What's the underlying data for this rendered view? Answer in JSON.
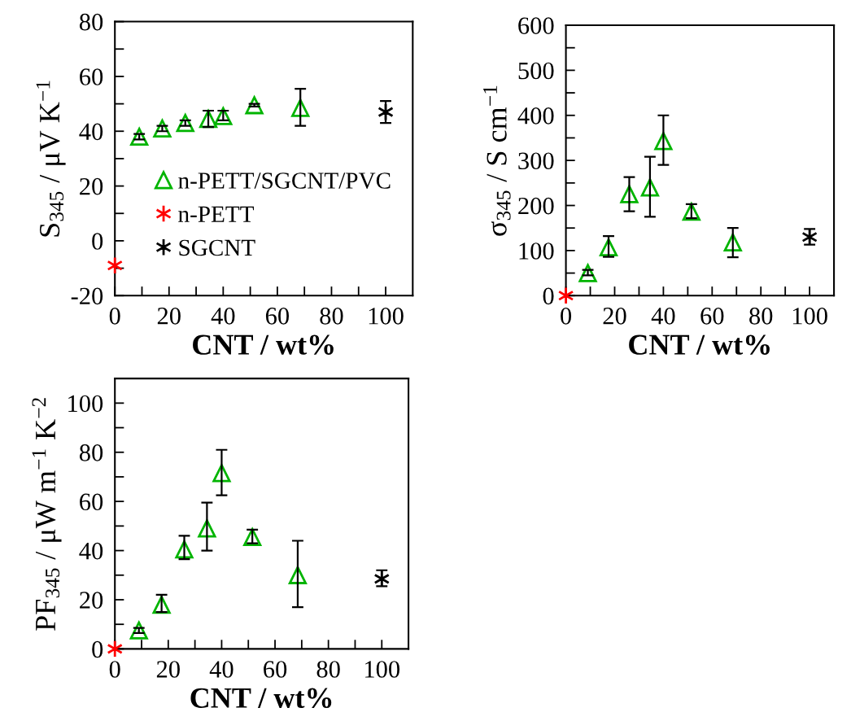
{
  "chart_data": [
    {
      "type": "scatter",
      "xlabel": "CNT / wt%",
      "ylabel": "S$_{345}$ / μV K$^{−1}$",
      "xlim": [
        0,
        110
      ],
      "ylim": [
        -20,
        80
      ],
      "xticks": [
        0,
        {
          "value": 10,
          "label": null
        },
        20,
        {
          "value": 30,
          "label": null
        },
        40,
        {
          "value": 50,
          "label": null
        },
        60,
        {
          "value": 70,
          "label": null
        },
        80,
        {
          "value": 90,
          "label": null
        },
        100
      ],
      "yticks": [
        -20,
        {
          "value": -10,
          "label": null
        },
        0,
        {
          "value": 10,
          "label": null
        },
        20,
        {
          "value": 30,
          "label": null
        },
        40,
        {
          "value": 50,
          "label": null
        },
        60,
        {
          "value": 70,
          "label": null
        },
        80
      ],
      "grid": false,
      "legend": "right",
      "series": [
        {
          "name": "n-PETT/SGCNT/PVC",
          "color": "#00b400",
          "marker": "triangle",
          "x": [
            9,
            17.5,
            26,
            34.5,
            40,
            51.5,
            68.5
          ],
          "values": [
            38,
            41,
            43,
            44.5,
            45.5,
            49.5,
            48.5
          ],
          "errors": [
            1,
            1,
            1,
            [
              41.5,
              47.5
            ],
            [
              44,
              47.5
            ],
            0.5,
            [
              42,
              55.5
            ]
          ]
        },
        {
          "name": "n-PETT",
          "color": "#ff0000",
          "marker": "cross",
          "x": [
            0
          ],
          "values": [
            -9
          ]
        },
        {
          "name": "SGCNT",
          "color": "#000000",
          "marker": "cross",
          "x": [
            100
          ],
          "values": [
            47
          ],
          "errors": [
            [
              43,
              51
            ]
          ]
        }
      ]
    },
    {
      "type": "scatter",
      "xlabel": "CNT / wt%",
      "ylabel": "σ$_{345}$ / S cm$^{−1}$",
      "xlim": [
        0,
        110
      ],
      "ylim": [
        0,
        600
      ],
      "xticks": [
        0,
        {
          "value": 10,
          "label": null
        },
        20,
        {
          "value": 30,
          "label": null
        },
        40,
        {
          "value": 50,
          "label": null
        },
        60,
        {
          "value": 70,
          "label": null
        },
        80,
        {
          "value": 90,
          "label": null
        },
        100
      ],
      "yticks": [
        0,
        {
          "value": 50,
          "label": null
        },
        100,
        {
          "value": 150,
          "label": null
        },
        200,
        {
          "value": 250,
          "label": null
        },
        300,
        {
          "value": 350,
          "label": null
        },
        400,
        {
          "value": 450,
          "label": null
        },
        500,
        {
          "value": 550,
          "label": null
        },
        600
      ],
      "grid": false,
      "series": [
        {
          "color": "#00b400",
          "marker": "triangle",
          "x": [
            9,
            17.5,
            26,
            34.5,
            40,
            51.5,
            68.5
          ],
          "values": [
            50,
            107,
            225,
            240,
            343,
            186,
            118
          ],
          "errors": [
            [
              45,
              57
            ],
            [
              86,
              132
            ],
            [
              187,
              263
            ],
            [
              175,
              308
            ],
            [
              290,
              400
            ],
            [
              172,
              203
            ],
            [
              85,
              150
            ]
          ]
        },
        {
          "color": "#ff0000",
          "marker": "cross",
          "x": [
            0
          ],
          "values": [
            0
          ]
        },
        {
          "color": "#000000",
          "marker": "cross",
          "x": [
            100
          ],
          "values": [
            130
          ],
          "errors": [
            [
              113,
              148
            ]
          ]
        }
      ]
    },
    {
      "type": "scatter",
      "xlabel": "CNT / wt%",
      "ylabel": "PF$_{345}$ / μW m$^{−1}$ K$^{−2}$",
      "xlim": [
        0,
        110
      ],
      "ylim": [
        0,
        110
      ],
      "xticks": [
        0,
        {
          "value": 10,
          "label": null
        },
        20,
        {
          "value": 30,
          "label": null
        },
        40,
        {
          "value": 50,
          "label": null
        },
        60,
        {
          "value": 70,
          "label": null
        },
        80,
        {
          "value": 90,
          "label": null
        },
        100
      ],
      "yticks": [
        0,
        {
          "value": 10,
          "label": null
        },
        20,
        {
          "value": 30,
          "label": null
        },
        40,
        {
          "value": 50,
          "label": null
        },
        60,
        {
          "value": 70,
          "label": null
        },
        80,
        {
          "value": 90,
          "label": null
        },
        100
      ],
      "grid": false,
      "series": [
        {
          "color": "#00b400",
          "marker": "triangle",
          "x": [
            9,
            17.5,
            26,
            34.5,
            40,
            51.5,
            68.5
          ],
          "values": [
            7.5,
            18,
            40.5,
            49,
            71.5,
            45.5,
            30
          ],
          "errors": [
            [
              6.5,
              8.5
            ],
            [
              15,
              22
            ],
            [
              36.5,
              46
            ],
            [
              40,
              59.5
            ],
            [
              62.5,
              81
            ],
            [
              43,
              48.5
            ],
            [
              17,
              44
            ]
          ]
        },
        {
          "color": "#ff0000",
          "marker": "cross",
          "x": [
            0
          ],
          "values": [
            0
          ]
        },
        {
          "color": "#000000",
          "marker": "cross",
          "x": [
            100
          ],
          "values": [
            28.5
          ],
          "errors": [
            [
              25.5,
              32
            ]
          ]
        }
      ]
    }
  ]
}
